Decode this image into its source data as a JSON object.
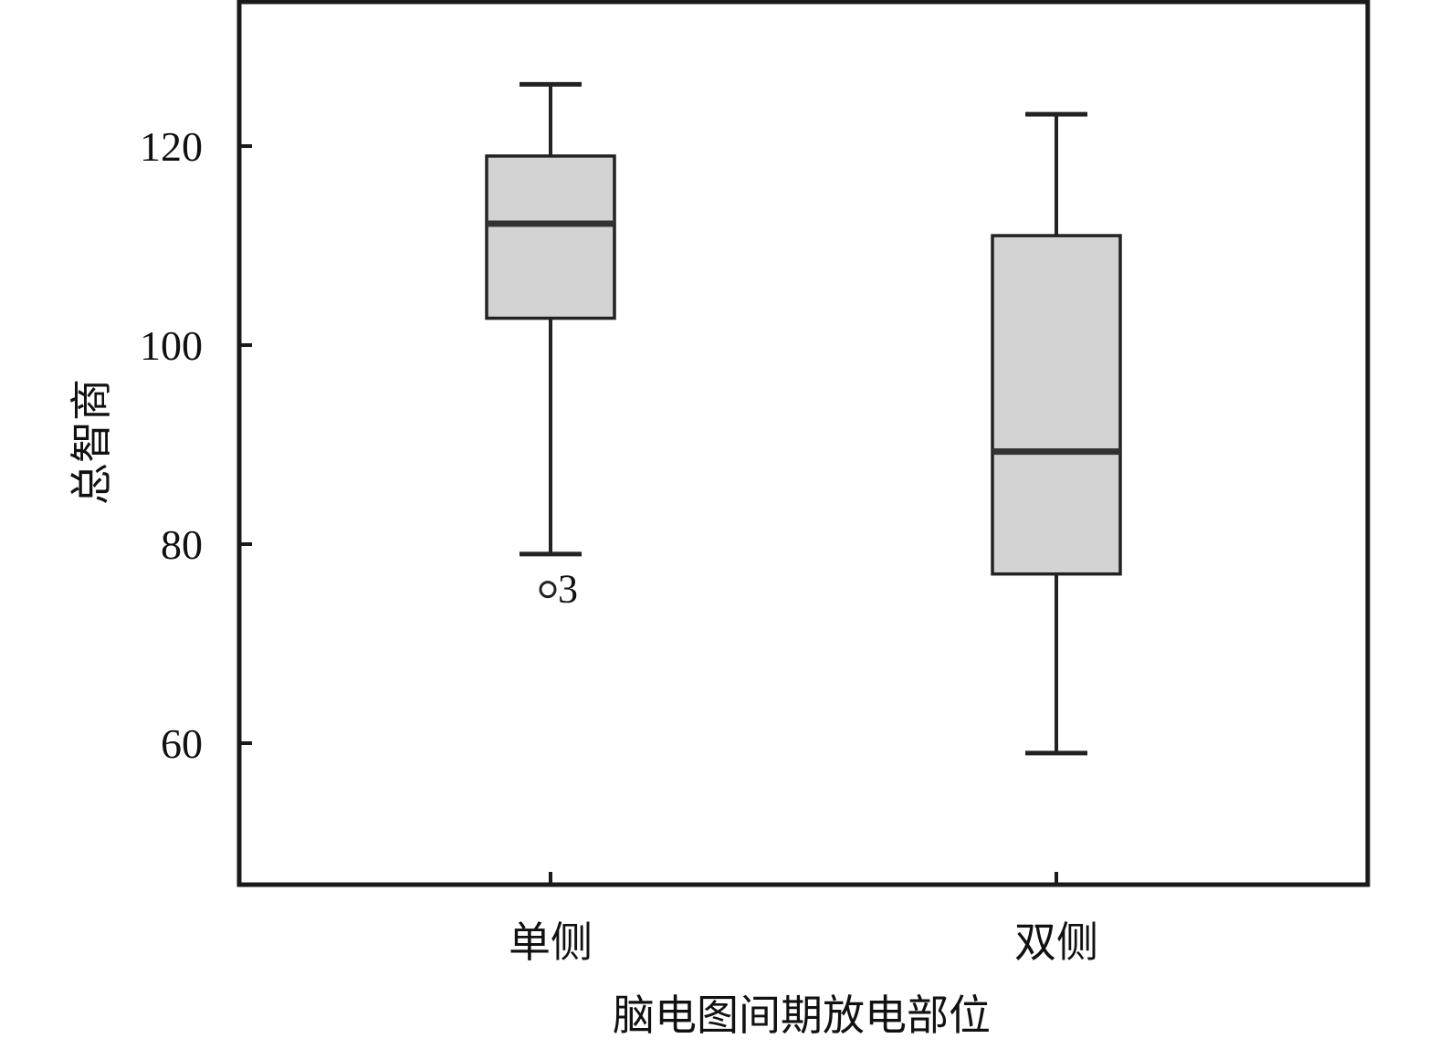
{
  "chart_data": {
    "type": "boxplot",
    "xlabel": "脑电图间期放电部位",
    "ylabel": "总智商",
    "ylim": [
      46,
      135
    ],
    "yticks": [
      60,
      80,
      100,
      120
    ],
    "grid": false,
    "categories": [
      "单侧",
      "双侧"
    ],
    "boxes": [
      {
        "category": "单侧",
        "min": 79,
        "q1": 102.7,
        "median": 112.2,
        "q3": 119,
        "max": 126.2,
        "outliers": [
          {
            "value": 76,
            "label": "3"
          }
        ]
      },
      {
        "category": "双侧",
        "min": 59,
        "q1": 77,
        "median": 89.3,
        "q3": 111,
        "max": 123.2,
        "outliers": []
      }
    ],
    "colors": {
      "box_fill": "#d3d3d3",
      "box_stroke": "#222222",
      "median": "#333333",
      "axis": "#1a1a1a"
    }
  }
}
